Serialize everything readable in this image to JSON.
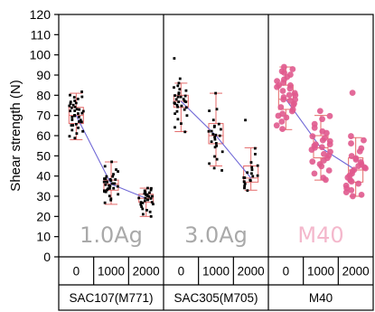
{
  "chart_data": {
    "type": "scatter",
    "title": "",
    "xlabel": "",
    "ylabel": "Shear strength (N)",
    "ylim": [
      0,
      120
    ],
    "yticks": [
      0,
      10,
      20,
      30,
      40,
      50,
      60,
      70,
      80,
      90,
      100,
      110,
      120
    ],
    "grid": false,
    "panels": [
      {
        "label": "1.0Ag",
        "group": "SAC107(M771)",
        "label_color": "#a9a9a9",
        "point_color": "#000000",
        "box_color": "#e46a6a",
        "line_color": "#6f67d6",
        "categories": [
          "0",
          "1000",
          "2000"
        ],
        "series": [
          {
            "category": "0",
            "median": 70,
            "q1": 66,
            "q3": 74,
            "whisker_low": 58,
            "whisker_high": 81,
            "values": [
              82,
              80,
              79,
              79,
              78,
              77,
              77,
              76,
              76,
              75,
              75,
              74,
              74,
              73,
              73,
              72,
              72,
              72,
              71,
              71,
              70,
              70,
              70,
              69,
              69,
              68,
              68,
              67,
              67,
              66,
              65,
              65,
              64,
              63,
              62,
              61,
              60,
              59
            ]
          },
          {
            "category": "1000",
            "median": 36,
            "q1": 33,
            "q3": 38,
            "whisker_low": 26,
            "whisker_high": 47,
            "values": [
              47,
              45,
              43,
              42,
              41,
              40,
              40,
              39,
              39,
              38,
              38,
              38,
              37,
              37,
              37,
              36,
              36,
              36,
              35,
              35,
              35,
              34,
              34,
              34,
              33,
              33,
              32,
              32,
              31,
              30,
              29,
              28,
              27
            ]
          },
          {
            "category": "2000",
            "median": 29,
            "q1": 27,
            "q3": 31,
            "whisker_low": 20,
            "whisker_high": 34,
            "values": [
              34,
              34,
              33,
              33,
              32,
              32,
              31,
              31,
              31,
              30,
              30,
              30,
              29,
              29,
              29,
              28,
              28,
              28,
              27,
              27,
              27,
              26,
              26,
              25,
              24,
              23,
              22,
              21,
              20
            ]
          }
        ]
      },
      {
        "label": "3.0Ag",
        "group": "SAC305(M705)",
        "label_color": "#a9a9a9",
        "point_color": "#000000",
        "box_color": "#e46a6a",
        "line_color": "#6f67d6",
        "categories": [
          "0",
          "1000",
          "2000"
        ],
        "series": [
          {
            "category": "0",
            "median": 77,
            "q1": 74,
            "q3": 80,
            "whisker_low": 62,
            "whisker_high": 86,
            "values": [
              98,
              88,
              86,
              85,
              84,
              83,
              82,
              81,
              81,
              80,
              80,
              79,
              79,
              78,
              78,
              77,
              77,
              77,
              76,
              76,
              75,
              75,
              74,
              74,
              73,
              72,
              71,
              70,
              68,
              66,
              64,
              62
            ]
          },
          {
            "category": "1000",
            "median": 60,
            "q1": 56,
            "q3": 66,
            "whisker_low": 45,
            "whisker_high": 81,
            "values": [
              81,
              73,
              72,
              68,
              66,
              65,
              64,
              63,
              62,
              62,
              61,
              60,
              60,
              59,
              58,
              57,
              56,
              55,
              54,
              52,
              50,
              48,
              46,
              44,
              43
            ]
          },
          {
            "category": "2000",
            "median": 39,
            "q1": 37,
            "q3": 45,
            "whisker_low": 33,
            "whisker_high": 54,
            "values": [
              68,
              54,
              51,
              47,
              45,
              44,
              43,
              42,
              41,
              40,
              40,
              39,
              39,
              38,
              38,
              37,
              37,
              36,
              35,
              34,
              33
            ]
          }
        ]
      },
      {
        "label": "M40",
        "group": "M40",
        "label_color": "#f4b8cc",
        "point_color": "#e05a8e",
        "box_color": "#e46a6a",
        "line_color": "#6f67d6",
        "categories": [
          "0",
          "1000",
          "2000"
        ],
        "series": [
          {
            "category": "0",
            "median": 78,
            "q1": 73,
            "q3": 85,
            "whisker_low": 63,
            "whisker_high": 94,
            "values": [
              94,
              93,
              92,
              91,
              90,
              89,
              88,
              87,
              86,
              85,
              85,
              84,
              83,
              82,
              81,
              80,
              80,
              79,
              78,
              78,
              77,
              76,
              75,
              74,
              73,
              72,
              71,
              70,
              69,
              67,
              65,
              63
            ]
          },
          {
            "category": "1000",
            "median": 54,
            "q1": 49,
            "q3": 60,
            "whisker_low": 38,
            "whisker_high": 70,
            "values": [
              72,
              70,
              68,
              66,
              64,
              62,
              61,
              60,
              59,
              58,
              57,
              56,
              56,
              55,
              54,
              54,
              53,
              52,
              51,
              50,
              49,
              48,
              47,
              46,
              45,
              43,
              41,
              39,
              38
            ]
          },
          {
            "category": "2000",
            "median": 43,
            "q1": 37,
            "q3": 49,
            "whisker_low": 30,
            "whisker_high": 59,
            "values": [
              81,
              60,
              58,
              56,
              54,
              52,
              50,
              49,
              48,
              47,
              46,
              45,
              44,
              44,
              43,
              42,
              41,
              40,
              39,
              38,
              37,
              36,
              35,
              34,
              33,
              32,
              31,
              30
            ]
          }
        ]
      }
    ]
  }
}
